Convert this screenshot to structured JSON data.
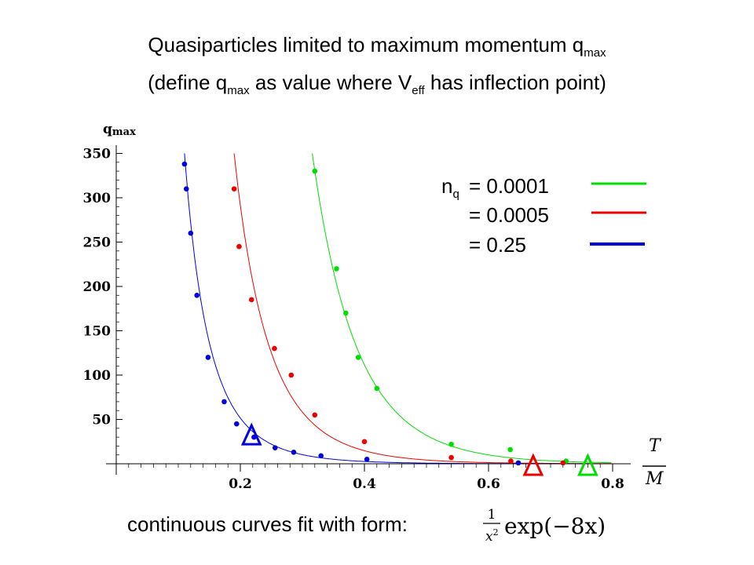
{
  "slide": {
    "title1_main": "Quasiparticles limited to maximum momentum q",
    "title1_sub": "max",
    "title2_a": "(define q",
    "title2_sub1": "max",
    "title2_b": " as value where V",
    "title2_sub2": "eff",
    "title2_c": " has inflection point)",
    "footer": "continuous curves fit with form:",
    "formula_num": "1",
    "formula_den_base": "x",
    "formula_den_exp": "2",
    "formula_rest": "exp(−8x)"
  },
  "chart_data": {
    "type": "scatter",
    "ylabel": "qmax",
    "ylabel_main": "q",
    "ylabel_sub": "max",
    "xlabel_num": "T",
    "xlabel_den": "M",
    "xlim": [
      0,
      0.82
    ],
    "ylim": [
      0,
      350
    ],
    "xticks": [
      0.2,
      0.4,
      0.6,
      0.8
    ],
    "yticks": [
      50,
      100,
      150,
      200,
      250,
      300,
      350
    ],
    "legend": {
      "prefix": "n",
      "prefix_sub": "q",
      "entries": [
        {
          "label": "= 0.0001",
          "color": "#00dd00"
        },
        {
          "label": "= 0.0005",
          "color": "#ee0000"
        },
        {
          "label": "= 0.25",
          "color": "#0000dd"
        }
      ]
    },
    "series": [
      {
        "color": "#00dd00",
        "x0": 0.316,
        "points": [
          [
            0.32,
            330
          ],
          [
            0.355,
            220
          ],
          [
            0.37,
            170
          ],
          [
            0.39,
            120
          ],
          [
            0.42,
            85
          ],
          [
            0.54,
            22
          ],
          [
            0.635,
            16
          ],
          [
            0.725,
            3
          ]
        ],
        "marker_x": 0.76
      },
      {
        "color": "#ee0000",
        "x0": 0.19,
        "points": [
          [
            0.19,
            310
          ],
          [
            0.198,
            245
          ],
          [
            0.218,
            185
          ],
          [
            0.255,
            130
          ],
          [
            0.282,
            100
          ],
          [
            0.32,
            55
          ],
          [
            0.4,
            25
          ],
          [
            0.54,
            7
          ],
          [
            0.636,
            3
          ],
          [
            0.72,
            1
          ]
        ],
        "marker_x": 0.672
      },
      {
        "color": "#0000dd",
        "x0": 0.11,
        "points": [
          [
            0.11,
            338
          ],
          [
            0.113,
            310
          ],
          [
            0.12,
            260
          ],
          [
            0.13,
            190
          ],
          [
            0.148,
            120
          ],
          [
            0.174,
            70
          ],
          [
            0.194,
            45
          ],
          [
            0.222,
            30
          ],
          [
            0.256,
            18
          ],
          [
            0.286,
            13
          ],
          [
            0.33,
            9
          ],
          [
            0.404,
            5
          ],
          [
            0.648,
            1
          ]
        ],
        "marker_x": 0.218
      }
    ]
  }
}
